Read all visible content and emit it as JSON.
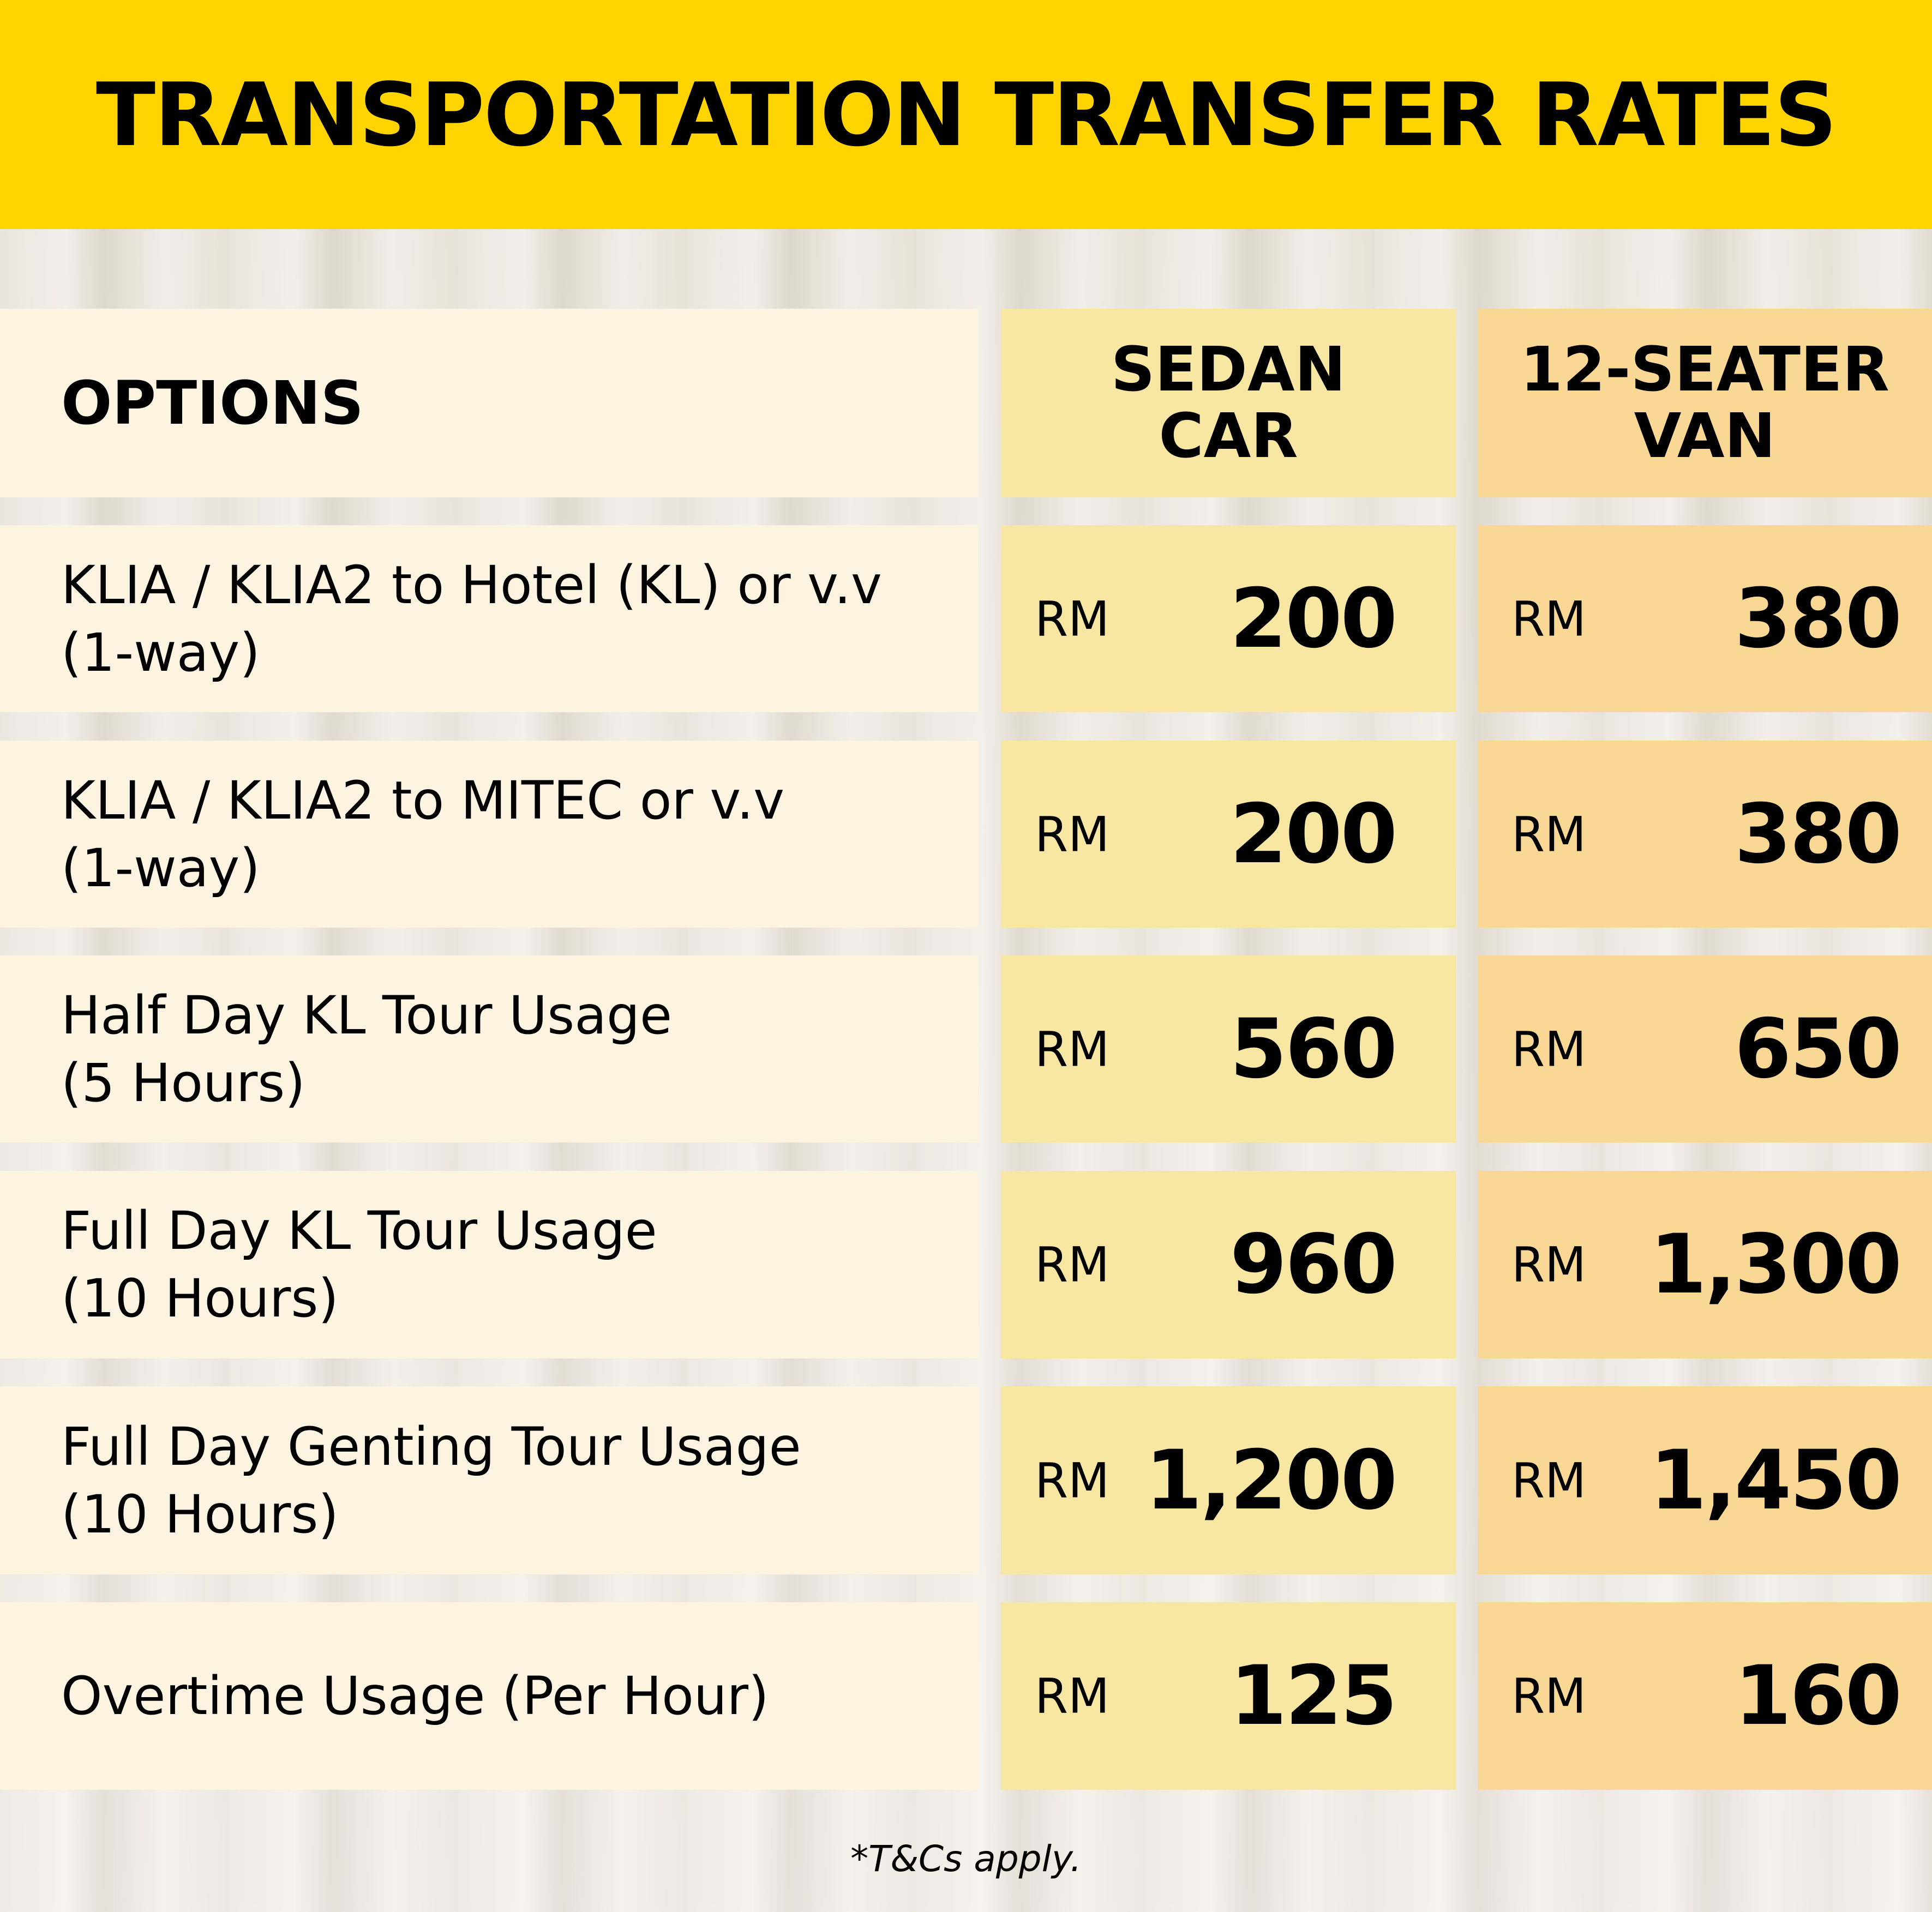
{
  "title": "TRANSPORTATION TRANSFER RATES",
  "columns": {
    "options": "OPTIONS",
    "sedan": "SEDAN\nCAR",
    "van": "12-SEATER\nVAN"
  },
  "currency": "RM",
  "rows": [
    {
      "line1": "KLIA / KLIA2 to Hotel (KL) or v.v",
      "line2": "(1-way)",
      "sedan": "200",
      "van": "380"
    },
    {
      "line1": "KLIA / KLIA2 to MITEC or v.v",
      "line2": "(1-way)",
      "sedan": "200",
      "van": "380"
    },
    {
      "line1": "Half Day KL Tour Usage",
      "line2": "(5 Hours)",
      "sedan": "560",
      "van": "650"
    },
    {
      "line1": "Full Day KL Tour Usage",
      "line2": "(10 Hours)",
      "sedan": "960",
      "van": "1,300"
    },
    {
      "line1": "Full Day Genting Tour Usage",
      "line2": "(10 Hours)",
      "sedan": "1,200",
      "van": "1,450"
    },
    {
      "line1": "Overtime Usage (Per Hour)",
      "line2": "",
      "sedan": "125",
      "van": "160"
    }
  ],
  "footnote": "*T&Cs apply.",
  "colors": {
    "header": "#ffd400",
    "options_bg": "#fdf3e1",
    "sedan_bg": "#f8e6a3",
    "van_bg": "#f9d895"
  }
}
